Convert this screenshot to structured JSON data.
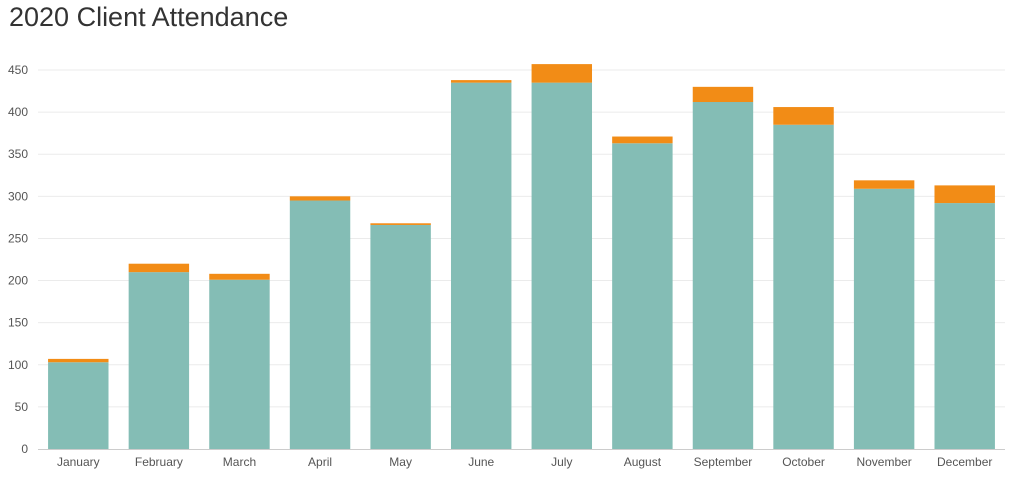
{
  "chart_data": {
    "type": "bar",
    "stacked": true,
    "title": "2020 Client Attendance",
    "xlabel": "",
    "ylabel": "",
    "categories": [
      "January",
      "February",
      "March",
      "April",
      "May",
      "June",
      "July",
      "August",
      "September",
      "October",
      "November",
      "December"
    ],
    "series": [
      {
        "color": "#84bdb5",
        "values": [
          103,
          210,
          201,
          295,
          266,
          435,
          435,
          363,
          412,
          385,
          309,
          292
        ]
      },
      {
        "color": "#f28c16",
        "values": [
          4,
          10,
          7,
          5,
          2,
          3,
          22,
          8,
          18,
          21,
          10,
          21
        ]
      }
    ],
    "ylim": [
      0,
      460
    ],
    "yticks": [
      0,
      50,
      100,
      150,
      200,
      250,
      300,
      350,
      400,
      450
    ],
    "grid": true,
    "legend": "none"
  }
}
